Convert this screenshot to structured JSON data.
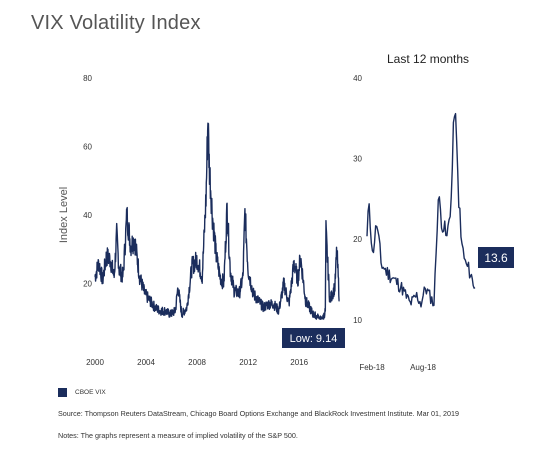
{
  "title": "VIX Volatility Index",
  "subtitle": "Last 12 months",
  "legend": {
    "label": "CBOE VIX"
  },
  "source": "Source: Thompson Reuters DataStream, Chicago Board Options Exchange and BlackRock Investment Institute. Mar 01, 2019",
  "notes": "Notes: The graphs represent a measure of implied volatility of the S&P 500.",
  "colors": {
    "series": "#1b2d5c",
    "label_bg": "#1b2d5c",
    "label_text": "#ffffff",
    "axis_text": "#333333"
  },
  "chart_data": [
    {
      "type": "line",
      "ylabel": "Index Level",
      "ylim": [
        0,
        80
      ],
      "yticks": [
        "0",
        "20",
        "40",
        "60",
        "80"
      ],
      "xlim": [
        2000,
        2019.2
      ],
      "xticks": [
        2000,
        2004,
        2008,
        2012,
        2016
      ],
      "xtick_labels": [
        "2000",
        "2004",
        "2008",
        "2012",
        "2016"
      ],
      "annotation": "Low: 9.14",
      "series": [
        {
          "x": [
            2000.0,
            2000.3,
            2000.6,
            2000.9,
            2001.2,
            2001.5,
            2001.7,
            2001.9,
            2002.2,
            2002.5,
            2002.8,
            2003.1,
            2003.5,
            2003.9,
            2004.3,
            2004.7,
            2005.1,
            2005.5,
            2005.9,
            2006.3,
            2006.5,
            2006.8,
            2007.2,
            2007.6,
            2008.0,
            2008.4,
            2008.7,
            2008.85,
            2008.95,
            2009.2,
            2009.5,
            2009.8,
            2010.1,
            2010.35,
            2010.6,
            2010.9,
            2011.3,
            2011.6,
            2011.75,
            2012.0,
            2012.4,
            2012.8,
            2013.2,
            2013.6,
            2014.0,
            2014.4,
            2014.8,
            2015.2,
            2015.6,
            2015.9,
            2016.1,
            2016.5,
            2016.8,
            2017.1,
            2017.5,
            2017.8,
            2018.05,
            2018.1,
            2018.4,
            2018.8,
            2018.95,
            2019.15
          ],
          "y": [
            22,
            26,
            21,
            28,
            27,
            22,
            34,
            24,
            22,
            40,
            31,
            33,
            22,
            17,
            15,
            13,
            12,
            12,
            11,
            12,
            19,
            11,
            13,
            25,
            27,
            22,
            45,
            68,
            55,
            40,
            28,
            22,
            20,
            42,
            24,
            18,
            17,
            22,
            41,
            24,
            17,
            15,
            13,
            14,
            14,
            12,
            20,
            14,
            26,
            21,
            28,
            15,
            13,
            11,
            10,
            9.14,
            12,
            35,
            15,
            19,
            30,
            15
          ]
        }
      ]
    },
    {
      "type": "line",
      "ylim": [
        6,
        40
      ],
      "yticks": [
        "10",
        "20",
        "30",
        "40"
      ],
      "xticks": [
        "Feb-18",
        "Aug-18"
      ],
      "annotation": "13.6",
      "series": [
        {
          "x": [
            0.0,
            0.02,
            0.05,
            0.09,
            0.13,
            0.18,
            0.25,
            0.32,
            0.4,
            0.46,
            0.5,
            0.54,
            0.58,
            0.62,
            0.66,
            0.7,
            0.74,
            0.78,
            0.81,
            0.84,
            0.87,
            0.91,
            0.95,
            1.0
          ],
          "y": [
            20,
            25,
            18,
            22,
            17,
            16,
            15,
            14,
            12,
            13,
            12,
            14,
            13,
            12,
            25,
            22,
            20,
            25,
            37,
            28,
            20,
            17,
            16,
            14
          ]
        }
      ]
    }
  ]
}
